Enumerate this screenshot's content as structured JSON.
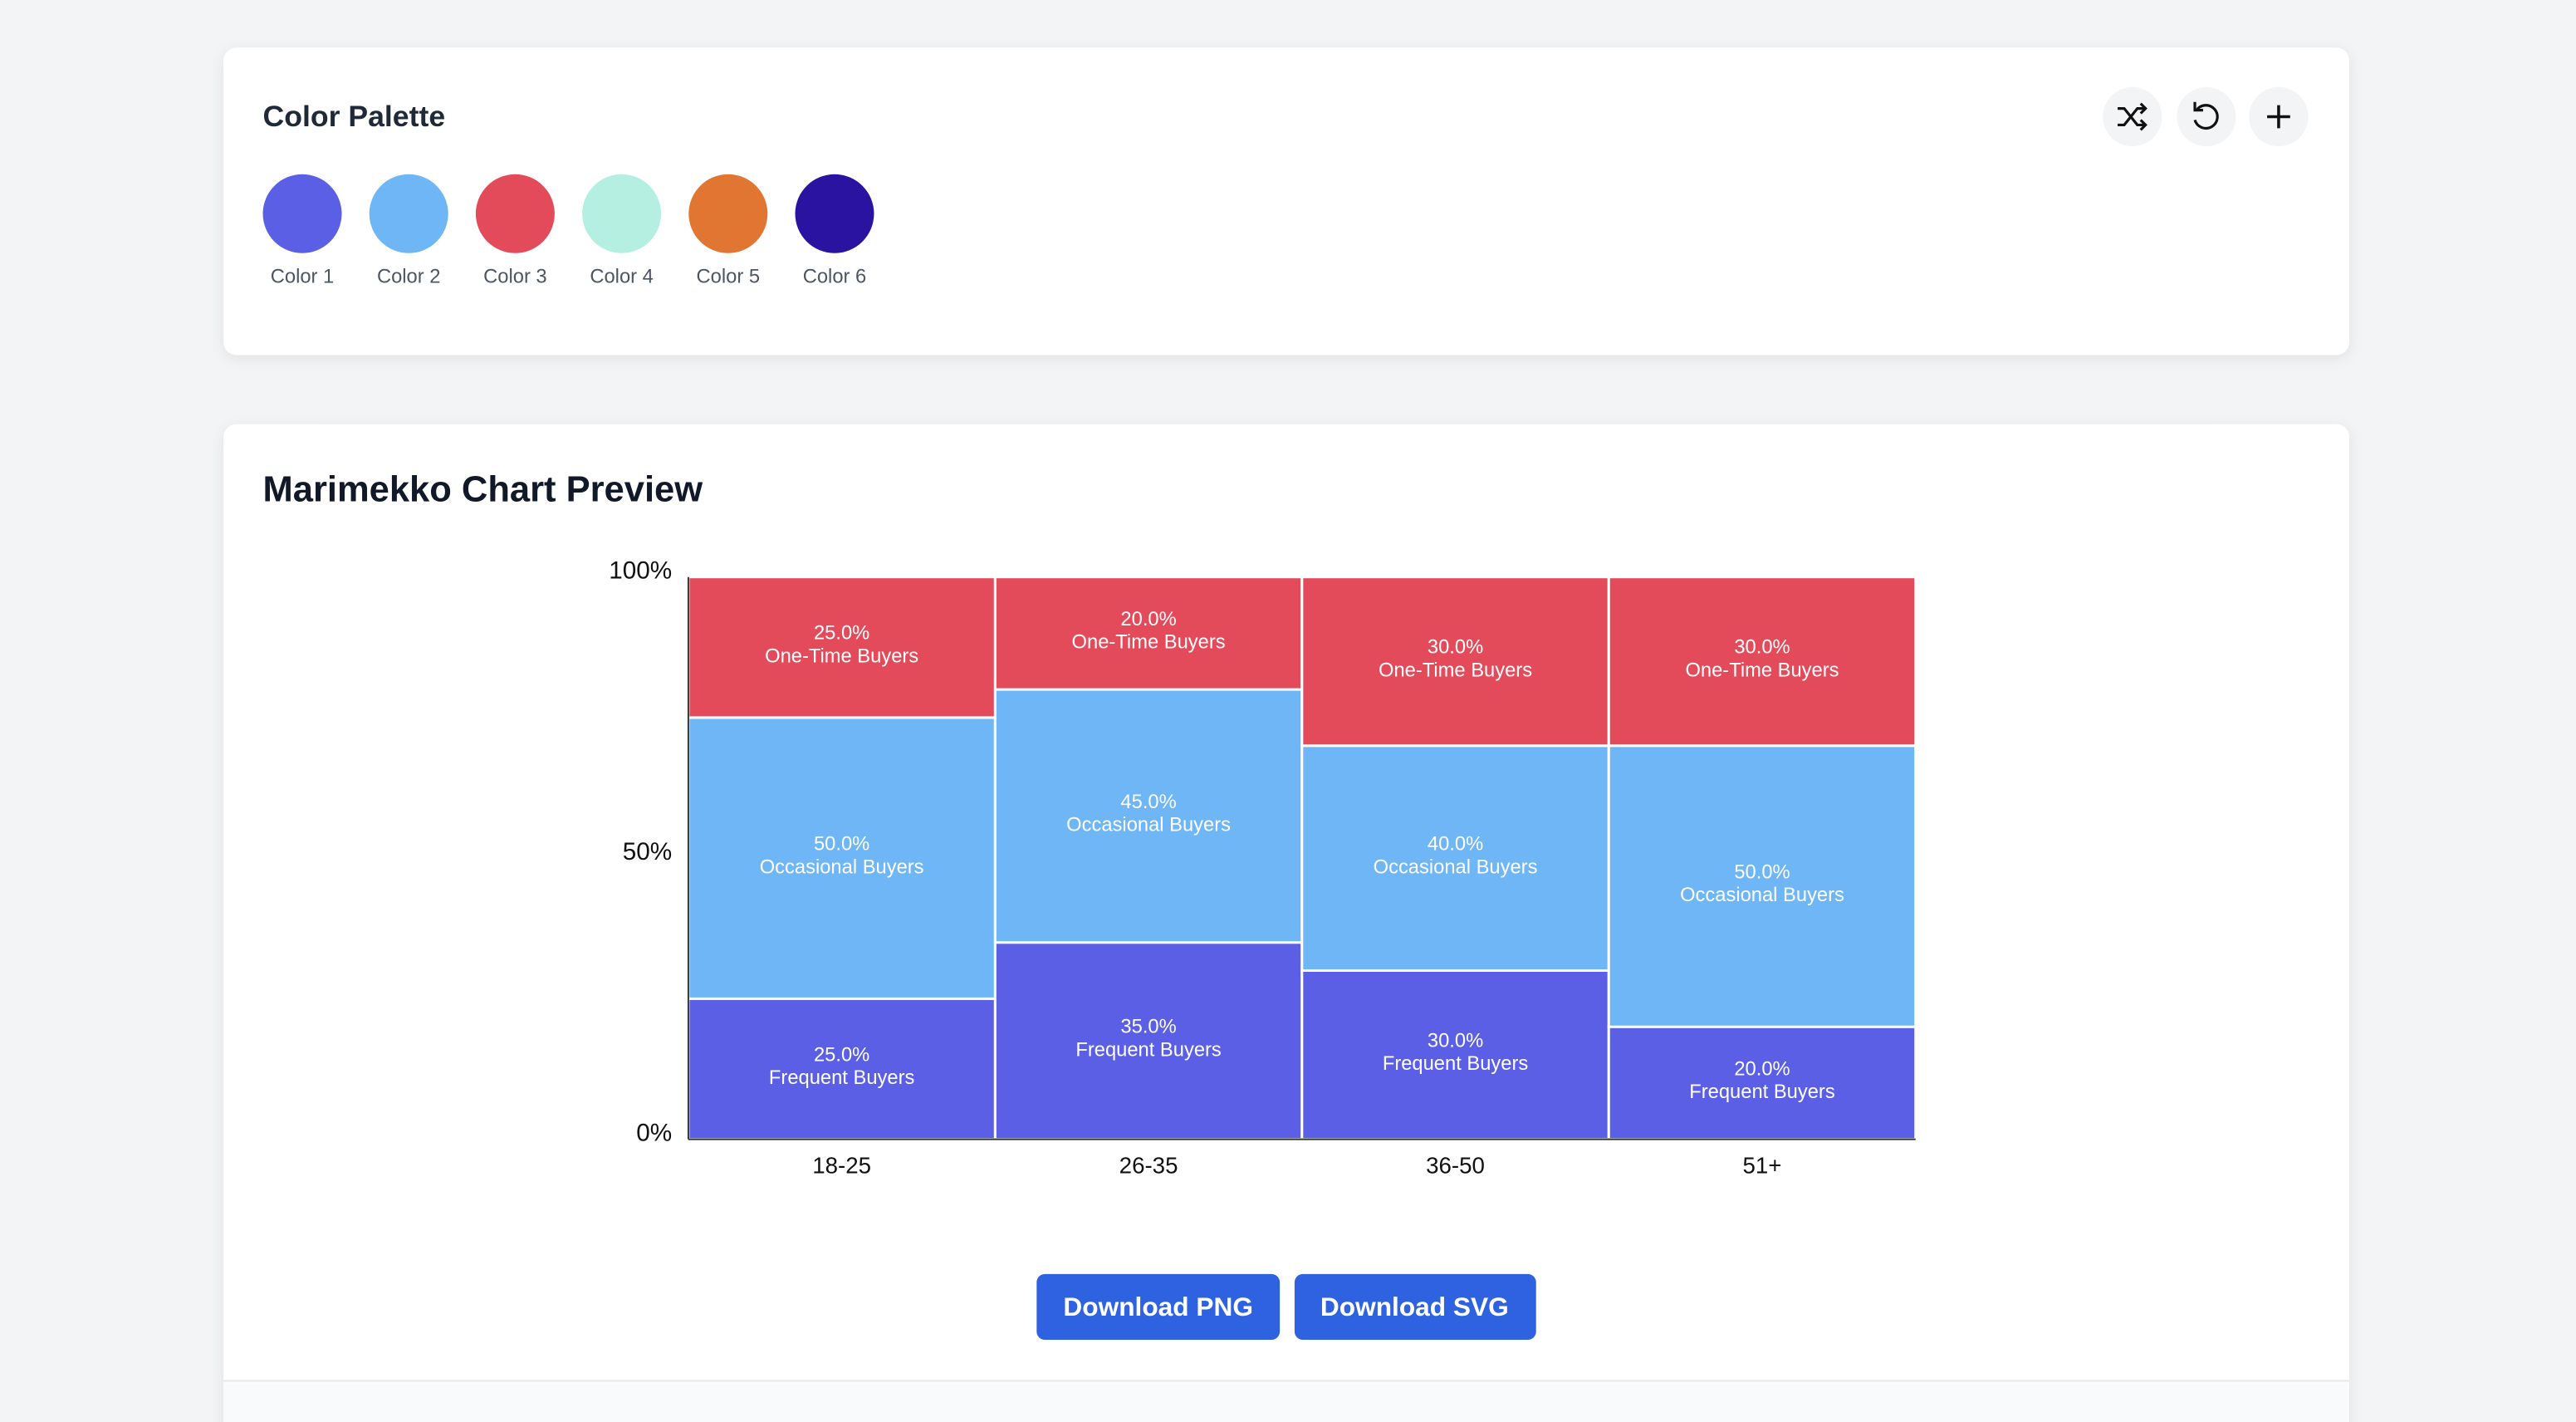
{
  "palette": {
    "title": "Color Palette",
    "colors": [
      {
        "label": "Color 1",
        "color": "#5b5fe6"
      },
      {
        "label": "Color 2",
        "color": "#6eb6f5"
      },
      {
        "label": "Color 3",
        "color": "#e34a5a"
      },
      {
        "label": "Color 4",
        "color": "#b5efe1"
      },
      {
        "label": "Color 5",
        "color": "#e07631"
      },
      {
        "label": "Color 6",
        "color": "#2a13a0"
      }
    ]
  },
  "chart_data": {
    "type": "marimekko",
    "title": "Marimekko Chart Preview",
    "categories": [
      "18-25",
      "26-35",
      "36-50",
      "51+"
    ],
    "ylim": [
      0,
      100
    ],
    "yticks": [
      {
        "value": 0,
        "label": "0%"
      },
      {
        "value": 50,
        "label": "50%"
      },
      {
        "value": 100,
        "label": "100%"
      }
    ],
    "series": [
      {
        "name": "Frequent Buyers",
        "color": "#5b5fe6",
        "values": [
          25,
          35,
          30,
          20
        ],
        "value_labels": [
          "25.0%",
          "35.0%",
          "30.0%",
          "20.0%"
        ]
      },
      {
        "name": "Occasional Buyers",
        "color": "#6eb6f5",
        "values": [
          50,
          45,
          40,
          50
        ],
        "value_labels": [
          "50.0%",
          "45.0%",
          "40.0%",
          "50.0%"
        ]
      },
      {
        "name": "One-Time Buyers",
        "color": "#e34a5a",
        "values": [
          25,
          20,
          30,
          30
        ],
        "value_labels": [
          "25.0%",
          "20.0%",
          "30.0%",
          "30.0%"
        ]
      }
    ]
  },
  "buttons": [
    "Download PNG",
    "Download SVG"
  ]
}
